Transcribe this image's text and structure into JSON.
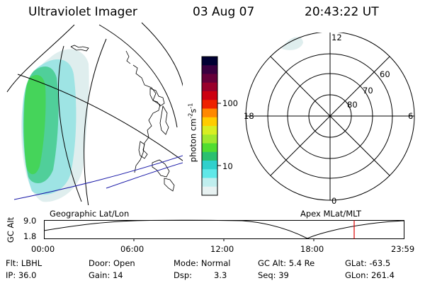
{
  "header": {
    "instrument": "Ultraviolet Imager",
    "date": "03 Aug 07",
    "time": "20:43:22 UT"
  },
  "colorbar": {
    "unit_label": "photon cm",
    "unit_sup1": "-2",
    "unit_s": "s",
    "unit_sup2": "-1",
    "ticks": [
      "100",
      "10"
    ],
    "colors": [
      "#000033",
      "#3a0040",
      "#66003a",
      "#99002b",
      "#cc0011",
      "#ee2200",
      "#ff8800",
      "#ffcc00",
      "#d8ee22",
      "#a0e82e",
      "#50dd30",
      "#2ac070",
      "#30d0cc",
      "#60e8e8",
      "#bfeeee",
      "#e8f2f2"
    ]
  },
  "polar": {
    "mlt_labels": [
      "12",
      "18",
      "6",
      "0"
    ],
    "lat_labels": [
      "60",
      "70",
      "80"
    ]
  },
  "labels": {
    "geo": "Geographic Lat/Lon",
    "apex": "Apex MLat/MLT"
  },
  "altplot": {
    "ylabel": "GC Alt",
    "ymax": "9.0",
    "ymin": "1.8",
    "xticks": [
      "00:00",
      "06:00",
      "12:00",
      "18:00",
      "23:59"
    ]
  },
  "footer": {
    "flt": "Flt: LBHL",
    "ip": "IP: 36.0",
    "door": "Door: Open",
    "gain": "Gain: 14",
    "mode": "Mode: Normal",
    "dsp_label": "Dsp:",
    "dsp_value": "3.3",
    "gcalt": "GC Alt: 5.4 Re",
    "seq": "Seq: 39",
    "glat": "GLat: -63.5",
    "glon": "GLon: 261.4"
  },
  "colors": {
    "grid_line": "#000000",
    "coast_line": "#1a1aa8",
    "marker": "#dd0000"
  }
}
